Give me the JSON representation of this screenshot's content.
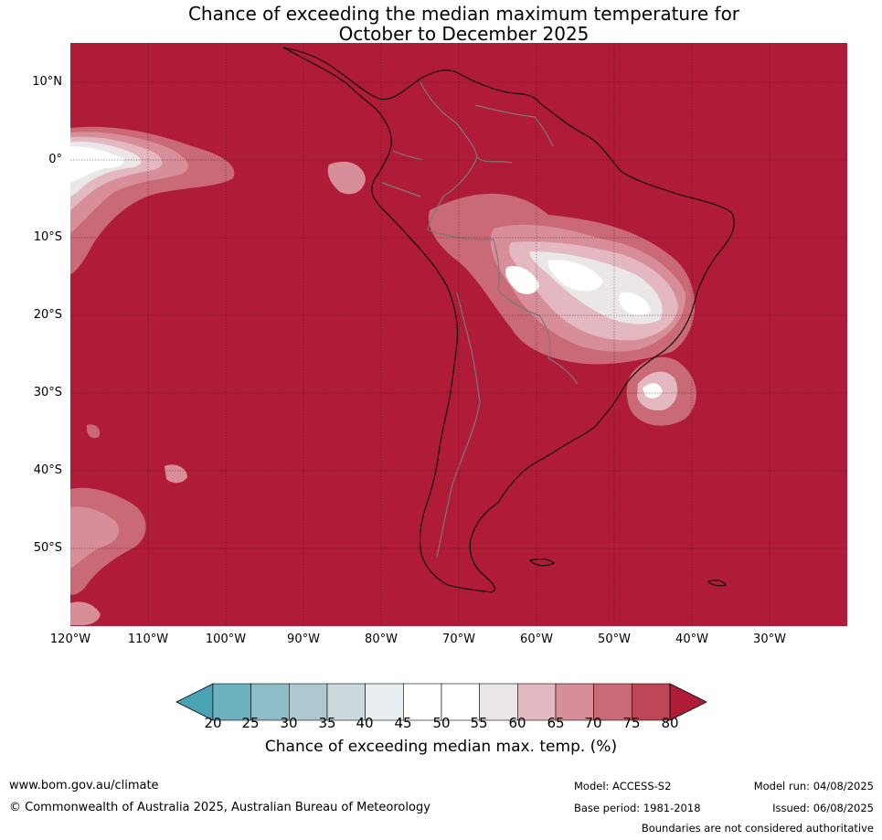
{
  "title": {
    "line1": "Chance of exceeding the median maximum temperature for",
    "line2": "October to December 2025"
  },
  "map": {
    "background_color": "#b01c38",
    "latitude_labels": [
      "10°N",
      "0°",
      "10°S",
      "20°S",
      "30°S",
      "40°S",
      "50°S"
    ],
    "longitude_labels": [
      "120°W",
      "110°W",
      "100°W",
      "90°W",
      "80°W",
      "70°W",
      "60°W",
      "50°W",
      "40°W",
      "30°W"
    ]
  },
  "colorbar": {
    "ticks": [
      "20",
      "25",
      "30",
      "35",
      "40",
      "45",
      "50",
      "55",
      "60",
      "65",
      "70",
      "75",
      "80"
    ],
    "colors": [
      "#4aa3b2",
      "#6db0bf",
      "#8ebcc7",
      "#adc9cf",
      "#ccd9dc",
      "#e9eff1",
      "#ffffff",
      "#ffffff",
      "#ebe6e8",
      "#e4b8c0",
      "#d88e99",
      "#c96a76",
      "#bd4756",
      "#b01c38"
    ],
    "caption": "Chance of exceeding median max. temp. (%)"
  },
  "footer": {
    "website": "www.bom.gov.au/climate",
    "copyright": "© Commonwealth of Australia 2025, Australian Bureau of Meteorology",
    "model": "Model: ACCESS-S2",
    "base_period": "Base period: 1981-2018",
    "model_run": "Model run: 04/08/2025",
    "issued": "Issued: 06/08/2025",
    "disclaimer": "Boundaries are not considered authoritative"
  }
}
